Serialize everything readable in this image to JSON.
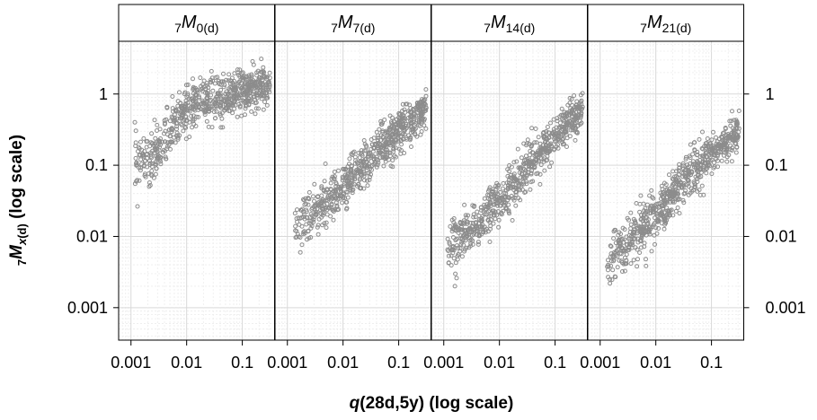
{
  "chart_data": {
    "type": "scatter",
    "layout": "4 panels in a row, shared log axes",
    "xscale": "log",
    "yscale": "log",
    "xlim": [
      0.0006,
      0.38
    ],
    "ylim": [
      0.00035,
      5.5
    ],
    "grid": true,
    "point_color": "#8c8c8c",
    "x_ticks": [
      0.001,
      0.01,
      0.1
    ],
    "x_tick_labels": [
      "0.001",
      "0.01",
      "0.1"
    ],
    "y_ticks": [
      0.001,
      0.01,
      0.1,
      1
    ],
    "y_tick_labels": [
      "0.001",
      "0.01",
      "0.1",
      "1"
    ],
    "x_label": {
      "prefix": "q",
      "suffix": "(28d,5y) (log scale)"
    },
    "y_label": {
      "presub": "7",
      "main": "M",
      "sub1": "x",
      "sub2": "(d)",
      "suffix": " (log scale)"
    },
    "panels": [
      {
        "pre": "7",
        "main": "M",
        "sub": "0(d)",
        "trend": [
          [
            0.0013,
            0.12
          ],
          [
            0.0025,
            0.11
          ],
          [
            0.004,
            0.22
          ],
          [
            0.006,
            0.35
          ],
          [
            0.01,
            0.6
          ],
          [
            0.02,
            0.8
          ],
          [
            0.05,
            0.95
          ],
          [
            0.1,
            1.1
          ],
          [
            0.2,
            1.25
          ],
          [
            0.3,
            1.4
          ]
        ]
      },
      {
        "pre": "7",
        "main": "M",
        "sub": "7(d)",
        "trend": [
          [
            0.0015,
            0.015
          ],
          [
            0.003,
            0.022
          ],
          [
            0.01,
            0.045
          ],
          [
            0.03,
            0.12
          ],
          [
            0.1,
            0.3
          ],
          [
            0.3,
            0.6
          ]
        ]
      },
      {
        "pre": "7",
        "main": "M",
        "sub": "14(d)",
        "trend": [
          [
            0.0013,
            0.0075
          ],
          [
            0.003,
            0.012
          ],
          [
            0.01,
            0.03
          ],
          [
            0.03,
            0.09
          ],
          [
            0.1,
            0.25
          ],
          [
            0.3,
            0.55
          ]
        ]
      },
      {
        "pre": "7",
        "main": "M",
        "sub": "21(d)",
        "trend": [
          [
            0.0015,
            0.005
          ],
          [
            0.003,
            0.008
          ],
          [
            0.01,
            0.02
          ],
          [
            0.03,
            0.06
          ],
          [
            0.1,
            0.15
          ],
          [
            0.3,
            0.3
          ]
        ]
      }
    ]
  }
}
